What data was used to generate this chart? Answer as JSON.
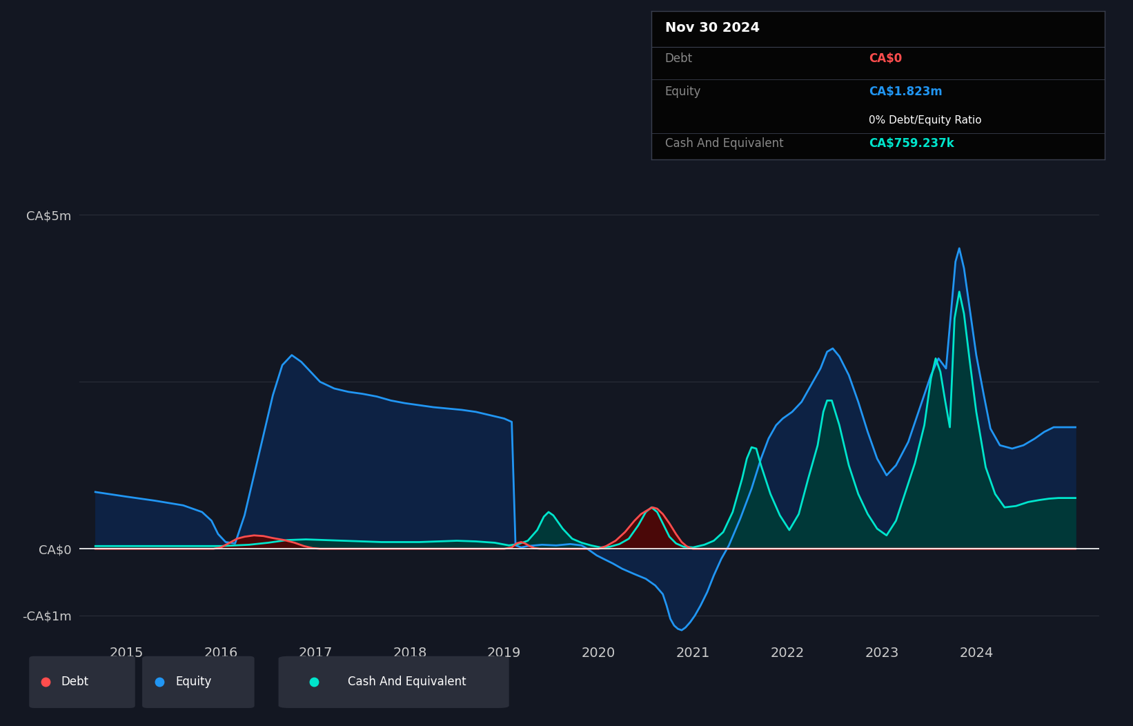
{
  "bg_color": "#131722",
  "plot_bg_color": "#131722",
  "grid_color": "#2a2e39",
  "debt_color": "#ff4d4d",
  "equity_color": "#2196f3",
  "cash_color": "#00e5cc",
  "equity_fill": "#0d2244",
  "cash_fill": "#003838",
  "debt_fill": "#4a0808",
  "legend_bg": "#2a2e3a",
  "tooltip_bg": "#050505",
  "tooltip_border": "#2a2e39",
  "ylabel_ca5m": "CA$5m",
  "ylabel_ca0": "CA$0",
  "ylabel_cam1": "-CA$1m",
  "tooltip": {
    "date": "Nov 30 2024",
    "debt_label": "Debt",
    "debt_value": "CA$0",
    "equity_label": "Equity",
    "equity_value": "CA$1.823m",
    "ratio_text": "0% Debt/Equity Ratio",
    "cash_label": "Cash And Equivalent",
    "cash_value": "CA$759.237k"
  },
  "xmin": 2014.5,
  "xmax": 2025.3,
  "ymin": -1.35,
  "ymax": 5.5,
  "xticks": [
    2015,
    2016,
    2017,
    2018,
    2019,
    2020,
    2021,
    2022,
    2023,
    2024
  ],
  "equity_data": [
    [
      2014.67,
      0.85
    ],
    [
      2015.0,
      0.78
    ],
    [
      2015.3,
      0.72
    ],
    [
      2015.6,
      0.65
    ],
    [
      2015.8,
      0.55
    ],
    [
      2015.9,
      0.42
    ],
    [
      2015.97,
      0.22
    ],
    [
      2016.05,
      0.1
    ],
    [
      2016.15,
      0.08
    ],
    [
      2016.25,
      0.5
    ],
    [
      2016.4,
      1.4
    ],
    [
      2016.55,
      2.3
    ],
    [
      2016.65,
      2.75
    ],
    [
      2016.75,
      2.9
    ],
    [
      2016.85,
      2.8
    ],
    [
      2016.95,
      2.65
    ],
    [
      2017.05,
      2.5
    ],
    [
      2017.2,
      2.4
    ],
    [
      2017.35,
      2.35
    ],
    [
      2017.5,
      2.32
    ],
    [
      2017.65,
      2.28
    ],
    [
      2017.8,
      2.22
    ],
    [
      2017.95,
      2.18
    ],
    [
      2018.1,
      2.15
    ],
    [
      2018.25,
      2.12
    ],
    [
      2018.4,
      2.1
    ],
    [
      2018.55,
      2.08
    ],
    [
      2018.7,
      2.05
    ],
    [
      2018.85,
      2.0
    ],
    [
      2019.0,
      1.95
    ],
    [
      2019.08,
      1.9
    ],
    [
      2019.12,
      0.05
    ],
    [
      2019.18,
      0.02
    ],
    [
      2019.25,
      0.04
    ],
    [
      2019.4,
      0.06
    ],
    [
      2019.55,
      0.05
    ],
    [
      2019.7,
      0.07
    ],
    [
      2019.82,
      0.05
    ],
    [
      2019.88,
      0.0
    ],
    [
      2019.93,
      -0.05
    ],
    [
      2019.98,
      -0.1
    ],
    [
      2020.05,
      -0.15
    ],
    [
      2020.15,
      -0.22
    ],
    [
      2020.25,
      -0.3
    ],
    [
      2020.38,
      -0.38
    ],
    [
      2020.5,
      -0.45
    ],
    [
      2020.6,
      -0.55
    ],
    [
      2020.68,
      -0.68
    ],
    [
      2020.72,
      -0.85
    ],
    [
      2020.76,
      -1.05
    ],
    [
      2020.8,
      -1.15
    ],
    [
      2020.84,
      -1.2
    ],
    [
      2020.88,
      -1.22
    ],
    [
      2020.92,
      -1.18
    ],
    [
      2020.97,
      -1.1
    ],
    [
      2021.02,
      -1.0
    ],
    [
      2021.08,
      -0.85
    ],
    [
      2021.15,
      -0.65
    ],
    [
      2021.22,
      -0.4
    ],
    [
      2021.3,
      -0.15
    ],
    [
      2021.38,
      0.05
    ],
    [
      2021.5,
      0.45
    ],
    [
      2021.62,
      0.9
    ],
    [
      2021.72,
      1.35
    ],
    [
      2021.8,
      1.65
    ],
    [
      2021.88,
      1.85
    ],
    [
      2021.95,
      1.95
    ],
    [
      2022.05,
      2.05
    ],
    [
      2022.15,
      2.2
    ],
    [
      2022.25,
      2.45
    ],
    [
      2022.35,
      2.7
    ],
    [
      2022.42,
      2.95
    ],
    [
      2022.48,
      3.0
    ],
    [
      2022.55,
      2.88
    ],
    [
      2022.65,
      2.6
    ],
    [
      2022.75,
      2.2
    ],
    [
      2022.85,
      1.75
    ],
    [
      2022.95,
      1.35
    ],
    [
      2023.05,
      1.1
    ],
    [
      2023.15,
      1.25
    ],
    [
      2023.28,
      1.6
    ],
    [
      2023.4,
      2.1
    ],
    [
      2023.52,
      2.6
    ],
    [
      2023.6,
      2.85
    ],
    [
      2023.68,
      2.7
    ],
    [
      2023.73,
      3.5
    ],
    [
      2023.78,
      4.3
    ],
    [
      2023.82,
      4.5
    ],
    [
      2023.87,
      4.2
    ],
    [
      2023.93,
      3.6
    ],
    [
      2024.0,
      2.9
    ],
    [
      2024.08,
      2.3
    ],
    [
      2024.15,
      1.8
    ],
    [
      2024.25,
      1.55
    ],
    [
      2024.38,
      1.5
    ],
    [
      2024.5,
      1.55
    ],
    [
      2024.62,
      1.65
    ],
    [
      2024.72,
      1.75
    ],
    [
      2024.82,
      1.82
    ],
    [
      2024.92,
      1.82
    ],
    [
      2025.05,
      1.82
    ]
  ],
  "cash_data": [
    [
      2014.67,
      0.04
    ],
    [
      2015.0,
      0.04
    ],
    [
      2015.5,
      0.04
    ],
    [
      2015.8,
      0.04
    ],
    [
      2016.0,
      0.04
    ],
    [
      2016.3,
      0.06
    ],
    [
      2016.5,
      0.09
    ],
    [
      2016.7,
      0.13
    ],
    [
      2016.9,
      0.14
    ],
    [
      2017.1,
      0.13
    ],
    [
      2017.3,
      0.12
    ],
    [
      2017.5,
      0.11
    ],
    [
      2017.7,
      0.1
    ],
    [
      2017.9,
      0.1
    ],
    [
      2018.1,
      0.1
    ],
    [
      2018.3,
      0.11
    ],
    [
      2018.5,
      0.12
    ],
    [
      2018.7,
      0.11
    ],
    [
      2018.9,
      0.09
    ],
    [
      2019.05,
      0.05
    ],
    [
      2019.15,
      0.07
    ],
    [
      2019.25,
      0.12
    ],
    [
      2019.35,
      0.28
    ],
    [
      2019.42,
      0.48
    ],
    [
      2019.47,
      0.55
    ],
    [
      2019.52,
      0.5
    ],
    [
      2019.62,
      0.3
    ],
    [
      2019.72,
      0.15
    ],
    [
      2019.82,
      0.09
    ],
    [
      2019.92,
      0.05
    ],
    [
      2020.02,
      0.02
    ],
    [
      2020.12,
      0.03
    ],
    [
      2020.22,
      0.07
    ],
    [
      2020.32,
      0.15
    ],
    [
      2020.42,
      0.35
    ],
    [
      2020.5,
      0.55
    ],
    [
      2020.56,
      0.62
    ],
    [
      2020.62,
      0.55
    ],
    [
      2020.68,
      0.38
    ],
    [
      2020.75,
      0.18
    ],
    [
      2020.82,
      0.08
    ],
    [
      2020.9,
      0.03
    ],
    [
      2021.0,
      0.02
    ],
    [
      2021.12,
      0.06
    ],
    [
      2021.22,
      0.12
    ],
    [
      2021.32,
      0.25
    ],
    [
      2021.42,
      0.55
    ],
    [
      2021.52,
      1.05
    ],
    [
      2021.57,
      1.35
    ],
    [
      2021.62,
      1.52
    ],
    [
      2021.67,
      1.5
    ],
    [
      2021.72,
      1.25
    ],
    [
      2021.82,
      0.82
    ],
    [
      2021.92,
      0.5
    ],
    [
      2022.02,
      0.28
    ],
    [
      2022.12,
      0.52
    ],
    [
      2022.22,
      1.05
    ],
    [
      2022.32,
      1.55
    ],
    [
      2022.38,
      2.05
    ],
    [
      2022.42,
      2.22
    ],
    [
      2022.47,
      2.22
    ],
    [
      2022.55,
      1.85
    ],
    [
      2022.65,
      1.25
    ],
    [
      2022.75,
      0.82
    ],
    [
      2022.85,
      0.52
    ],
    [
      2022.95,
      0.3
    ],
    [
      2023.05,
      0.2
    ],
    [
      2023.15,
      0.42
    ],
    [
      2023.25,
      0.85
    ],
    [
      2023.35,
      1.28
    ],
    [
      2023.45,
      1.85
    ],
    [
      2023.52,
      2.55
    ],
    [
      2023.57,
      2.85
    ],
    [
      2023.62,
      2.65
    ],
    [
      2023.67,
      2.22
    ],
    [
      2023.72,
      1.82
    ],
    [
      2023.77,
      3.45
    ],
    [
      2023.82,
      3.85
    ],
    [
      2023.87,
      3.52
    ],
    [
      2023.93,
      2.82
    ],
    [
      2024.0,
      2.05
    ],
    [
      2024.1,
      1.22
    ],
    [
      2024.2,
      0.82
    ],
    [
      2024.3,
      0.62
    ],
    [
      2024.42,
      0.64
    ],
    [
      2024.55,
      0.7
    ],
    [
      2024.67,
      0.73
    ],
    [
      2024.77,
      0.75
    ],
    [
      2024.87,
      0.76
    ],
    [
      2024.97,
      0.76
    ],
    [
      2025.05,
      0.76
    ]
  ],
  "debt_data": [
    [
      2014.67,
      0.0
    ],
    [
      2015.5,
      0.0
    ],
    [
      2015.92,
      0.0
    ],
    [
      2016.0,
      0.02
    ],
    [
      2016.08,
      0.08
    ],
    [
      2016.17,
      0.15
    ],
    [
      2016.25,
      0.18
    ],
    [
      2016.35,
      0.2
    ],
    [
      2016.45,
      0.19
    ],
    [
      2016.55,
      0.16
    ],
    [
      2016.67,
      0.13
    ],
    [
      2016.78,
      0.09
    ],
    [
      2016.88,
      0.04
    ],
    [
      2016.97,
      0.01
    ],
    [
      2017.05,
      0.0
    ],
    [
      2018.5,
      0.0
    ],
    [
      2019.0,
      0.0
    ],
    [
      2019.08,
      0.02
    ],
    [
      2019.13,
      0.08
    ],
    [
      2019.18,
      0.1
    ],
    [
      2019.22,
      0.08
    ],
    [
      2019.27,
      0.04
    ],
    [
      2019.32,
      0.01
    ],
    [
      2019.38,
      0.0
    ],
    [
      2020.0,
      0.0
    ],
    [
      2020.08,
      0.04
    ],
    [
      2020.18,
      0.12
    ],
    [
      2020.28,
      0.25
    ],
    [
      2020.38,
      0.42
    ],
    [
      2020.45,
      0.52
    ],
    [
      2020.52,
      0.58
    ],
    [
      2020.57,
      0.62
    ],
    [
      2020.62,
      0.6
    ],
    [
      2020.68,
      0.52
    ],
    [
      2020.75,
      0.38
    ],
    [
      2020.82,
      0.22
    ],
    [
      2020.88,
      0.1
    ],
    [
      2020.93,
      0.04
    ],
    [
      2020.97,
      0.01
    ],
    [
      2021.0,
      0.0
    ],
    [
      2025.05,
      0.0
    ]
  ]
}
